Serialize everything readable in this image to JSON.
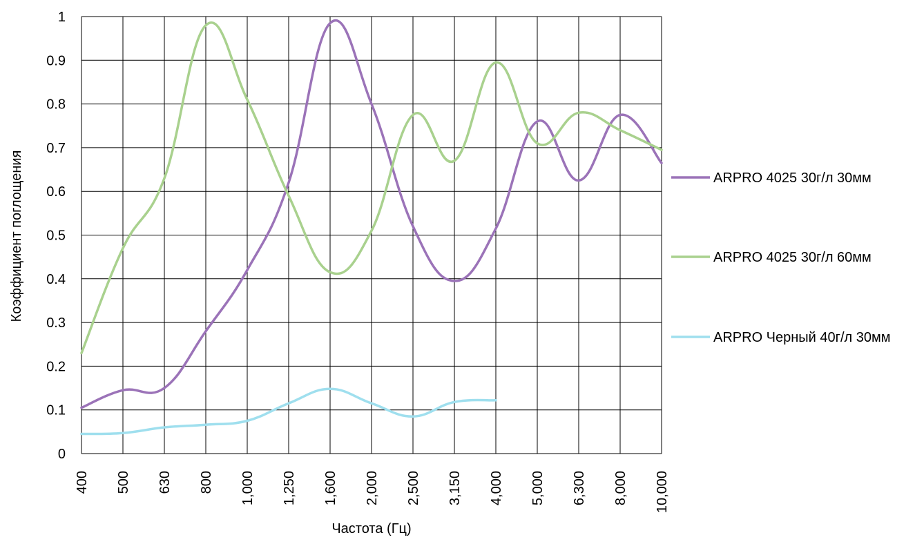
{
  "chart_data": {
    "type": "line",
    "xlabel": "Частота (Гц)",
    "ylabel": "Коэффициент поглощения",
    "categories": [
      "400",
      "500",
      "630",
      "800",
      "1,000",
      "1,250",
      "1,600",
      "2,000",
      "2,500",
      "3,150",
      "4,000",
      "5,000",
      "6,300",
      "8,000",
      "10,000"
    ],
    "ylim": [
      0,
      1
    ],
    "yticks": [
      "0",
      "0.1",
      "0.2",
      "0.3",
      "0.4",
      "0.5",
      "0.6",
      "0.7",
      "0.8",
      "0.9",
      "1"
    ],
    "grid": true,
    "legend_position": "right",
    "series": [
      {
        "name": "ARPRO 4025 30г/л 30мм",
        "color": "#9b73b8",
        "values": [
          0.105,
          0.145,
          0.15,
          0.28,
          0.42,
          0.62,
          0.985,
          0.8,
          0.52,
          0.395,
          0.515,
          0.76,
          0.625,
          0.775,
          0.665
        ]
      },
      {
        "name": "ARPRO 4025 30г/л 60мм",
        "color": "#a9d18e",
        "values": [
          0.23,
          0.47,
          0.63,
          0.98,
          0.81,
          0.59,
          0.415,
          0.51,
          0.775,
          0.67,
          0.895,
          0.71,
          0.78,
          0.74,
          0.695
        ]
      },
      {
        "name": "ARPRO Черный 40г/л 30мм",
        "color": "#9fdfee",
        "values": [
          0.045,
          0.047,
          0.06,
          0.066,
          0.075,
          0.115,
          0.148,
          0.115,
          0.085,
          0.118,
          0.122,
          null,
          null,
          null,
          null
        ]
      }
    ]
  }
}
